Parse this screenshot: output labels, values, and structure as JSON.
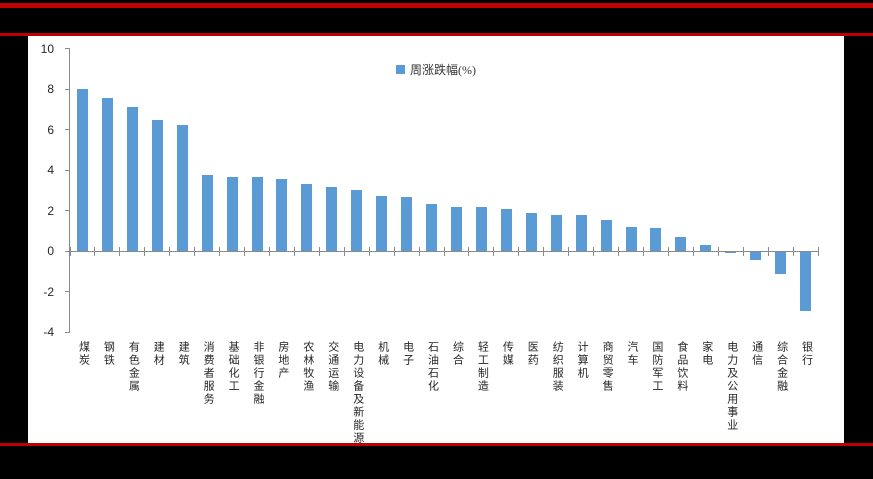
{
  "banner": {
    "accent_color": "#c00000",
    "background_color": "#000000"
  },
  "chart_data": {
    "type": "bar",
    "title": "",
    "legend": "周涨跌幅(%)",
    "legend_position": "top-center",
    "bar_color": "#5b9bd5",
    "axis_color": "#8a8a8a",
    "grid": false,
    "ylim": [
      -4,
      10
    ],
    "yticks": [
      10,
      8,
      6,
      4,
      2,
      0,
      -2,
      -4
    ],
    "categories": [
      "煤炭",
      "钢铁",
      "有色金属",
      "建材",
      "建筑",
      "消费者服务",
      "基础化工",
      "非银行金融",
      "房地产",
      "农林牧渔",
      "交通运输",
      "电力设备及新能源",
      "机械",
      "电子",
      "石油石化",
      "综合",
      "轻工制造",
      "传媒",
      "医药",
      "纺织服装",
      "计算机",
      "商贸零售",
      "汽车",
      "国防军工",
      "食品饮料",
      "家电",
      "电力及公用事业",
      "通信",
      "综合金融",
      "银行"
    ],
    "values": [
      8.0,
      7.55,
      7.1,
      6.45,
      6.2,
      3.75,
      3.65,
      3.65,
      3.55,
      3.3,
      3.15,
      3.0,
      2.7,
      2.65,
      2.3,
      2.15,
      2.15,
      2.05,
      1.9,
      1.8,
      1.8,
      1.55,
      1.2,
      1.15,
      0.7,
      0.3,
      -0.05,
      -0.4,
      -1.1,
      -2.9
    ]
  }
}
